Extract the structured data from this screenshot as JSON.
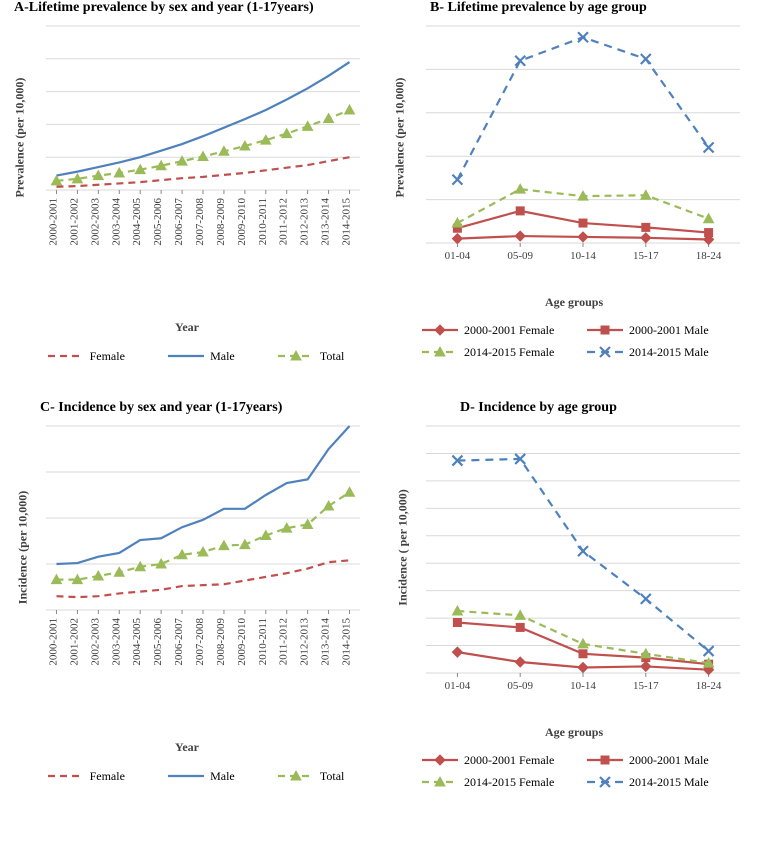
{
  "colors": {
    "grid": "#d9d9d9",
    "female": "#c0504d",
    "male": "#4f81bd",
    "total": "#9bbb59",
    "tick": "#888888",
    "text": "#404040"
  },
  "panelA": {
    "title": "A-Lifetime prevalence by sex and year (1-17years)",
    "ylabel": "Prevalence (per 10,000)",
    "xlabel": "Year",
    "xcats": [
      "2000-2001",
      "2001-2002",
      "2002-2003",
      "2003-2004",
      "2004-2005",
      "2005-2006",
      "2006-2007",
      "2007-2008",
      "2008-2009",
      "2009-2010",
      "2010-2011",
      "2011-2012",
      "2012-2013",
      "2013-2014",
      "2014-2015"
    ],
    "ylim": [
      0,
      250
    ],
    "ytick_step": 50,
    "series": [
      {
        "name": "Female",
        "color": "#c0504d",
        "dash": "7,5",
        "marker": null,
        "values": [
          5,
          6,
          8,
          10,
          12,
          15,
          18,
          20,
          23,
          26,
          30,
          34,
          38,
          44,
          50
        ]
      },
      {
        "name": "Male",
        "color": "#4f81bd",
        "dash": null,
        "marker": null,
        "values": [
          22,
          28,
          35,
          42,
          50,
          60,
          70,
          82,
          95,
          108,
          122,
          138,
          155,
          174,
          195
        ]
      },
      {
        "name": "Total",
        "color": "#9bbb59",
        "dash": "7,5",
        "marker": "triangle",
        "values": [
          14,
          17,
          22,
          26,
          31,
          37,
          44,
          51,
          59,
          67,
          76,
          86,
          97,
          109,
          122
        ]
      }
    ],
    "legend": [
      {
        "label": "Female",
        "color": "#c0504d",
        "dash": "7,5",
        "marker": null
      },
      {
        "label": "Male",
        "color": "#4f81bd",
        "dash": null,
        "marker": null
      },
      {
        "label": "Total",
        "color": "#9bbb59",
        "dash": "7,5",
        "marker": "triangle"
      }
    ]
  },
  "panelB": {
    "title": "B- Lifetime prevalence by age group",
    "ylabel": "Prevalence (per 10,000)",
    "xlabel": "Age groups",
    "xcats": [
      "01-04",
      "05-09",
      "10-14",
      "15-17",
      "18-24"
    ],
    "ylim": [
      0,
      250
    ],
    "ytick_step": 50,
    "series": [
      {
        "name": "2000-2001 Female",
        "color": "#c0504d",
        "dash": null,
        "marker": "diamond",
        "values": [
          5,
          8,
          7,
          6,
          4
        ]
      },
      {
        "name": "2000-2001 Male",
        "color": "#c0504d",
        "dash": null,
        "marker": "square",
        "values": [
          17,
          37,
          23,
          18,
          12
        ]
      },
      {
        "name": "2014-2015 Female",
        "color": "#9bbb59",
        "dash": "7,5",
        "marker": "triangle",
        "values": [
          23,
          62,
          54,
          55,
          28
        ]
      },
      {
        "name": "2014-2015 Male",
        "color": "#4f81bd",
        "dash": "8,6",
        "marker": "x",
        "values": [
          73,
          210,
          237,
          212,
          110
        ]
      }
    ],
    "legend": [
      {
        "label": "2000-2001 Female",
        "color": "#c0504d",
        "dash": null,
        "marker": "diamond"
      },
      {
        "label": "2000-2001 Male",
        "color": "#c0504d",
        "dash": null,
        "marker": "square"
      },
      {
        "label": "2014-2015 Female",
        "color": "#9bbb59",
        "dash": "7,5",
        "marker": "triangle"
      },
      {
        "label": "2014-2015 Male",
        "color": "#4f81bd",
        "dash": "8,6",
        "marker": "x"
      }
    ]
  },
  "panelC": {
    "title": "C-  Incidence by sex and year (1-17years)",
    "ylabel": "Incidence (per 10,000)",
    "xlabel": "Year",
    "xcats": [
      "2000-2001",
      "2001-2002",
      "2002-2003",
      "2003-2004",
      "2004-2005",
      "2005-2006",
      "2006-2007",
      "2007-2008",
      "2008-2009",
      "2009-2010",
      "2010-2011",
      "2011-2012",
      "2012-2013",
      "2013-2014",
      "2014-2015"
    ],
    "ylim": [
      0,
      20
    ],
    "ytick_step": 5,
    "series": [
      {
        "name": "Female",
        "color": "#c0504d",
        "dash": "7,5",
        "marker": null,
        "values": [
          1.5,
          1.4,
          1.5,
          1.8,
          2.0,
          2.2,
          2.6,
          2.7,
          2.8,
          3.2,
          3.6,
          4.0,
          4.5,
          5.2,
          5.4
        ]
      },
      {
        "name": "Male",
        "color": "#4f81bd",
        "dash": null,
        "marker": null,
        "values": [
          5.0,
          5.1,
          5.8,
          6.2,
          7.6,
          7.8,
          9.0,
          9.8,
          11.0,
          11.0,
          12.5,
          13.8,
          14.2,
          17.5,
          20.0
        ]
      },
      {
        "name": "Total",
        "color": "#9bbb59",
        "dash": "7,5",
        "marker": "triangle",
        "values": [
          3.3,
          3.3,
          3.7,
          4.1,
          4.7,
          5.0,
          6.0,
          6.3,
          7.0,
          7.1,
          8.1,
          8.9,
          9.3,
          11.3,
          12.8
        ]
      }
    ],
    "legend": [
      {
        "label": "Female",
        "color": "#c0504d",
        "dash": "7,5",
        "marker": null
      },
      {
        "label": "Male",
        "color": "#4f81bd",
        "dash": null,
        "marker": null
      },
      {
        "label": "Total",
        "color": "#9bbb59",
        "dash": "7,5",
        "marker": "triangle"
      }
    ]
  },
  "panelD": {
    "title": "D- Incidence by age group",
    "ylabel": "Incidence ( per 10,000)",
    "xlabel": "Age groups",
    "xcats": [
      "01-04",
      "05-09",
      "10-14",
      "15-17",
      "18-24"
    ],
    "ylim": [
      0,
      45
    ],
    "ytick_step": 5,
    "series": [
      {
        "name": "2000-2001 Female",
        "color": "#c0504d",
        "dash": null,
        "marker": "diamond",
        "values": [
          3.8,
          2.0,
          1.0,
          1.2,
          0.6
        ]
      },
      {
        "name": "2000-2001 Male",
        "color": "#c0504d",
        "dash": null,
        "marker": "square",
        "values": [
          9.2,
          8.3,
          3.5,
          2.8,
          1.6
        ]
      },
      {
        "name": "2014-2015 Female",
        "color": "#9bbb59",
        "dash": "7,5",
        "marker": "triangle",
        "values": [
          11.3,
          10.5,
          5.3,
          3.5,
          1.8
        ]
      },
      {
        "name": "2014-2015 Male",
        "color": "#4f81bd",
        "dash": "8,6",
        "marker": "x",
        "values": [
          38.7,
          39.0,
          22.2,
          13.5,
          4.0
        ]
      }
    ],
    "legend": [
      {
        "label": "2000-2001 Female",
        "color": "#c0504d",
        "dash": null,
        "marker": "diamond"
      },
      {
        "label": "2000-2001 Male",
        "color": "#c0504d",
        "dash": null,
        "marker": "square"
      },
      {
        "label": "2014-2015 Female",
        "color": "#9bbb59",
        "dash": "7,5",
        "marker": "triangle"
      },
      {
        "label": "2014-2015 Male",
        "color": "#4f81bd",
        "dash": "8,6",
        "marker": "x"
      }
    ]
  }
}
